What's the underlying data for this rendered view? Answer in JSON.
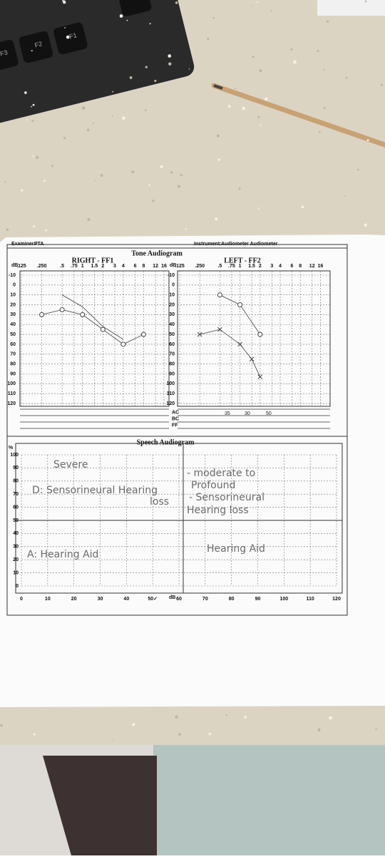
{
  "keyboard": {
    "keys": [
      "F3",
      "F2",
      "F1"
    ]
  },
  "header": {
    "examiner_label": "Examiner:",
    "examiner": "PTA",
    "instrument_label": "Instrument:",
    "instrument": "Audiometer Audiometer"
  },
  "tone_audiogram": {
    "title": "Tone Audiogram",
    "unit": "dB",
    "right": {
      "title": "RIGHT - FF1",
      "xticks": [
        {
          "value": 0.125,
          "label": ".125"
        },
        {
          "value": 0.25,
          "label": ".250"
        },
        {
          "value": 0.5,
          "label": ".5"
        },
        {
          "value": 0.75,
          "label": ".75"
        },
        1,
        1.5,
        2,
        3,
        4,
        6,
        8,
        12,
        16
      ],
      "yticks": [
        -10,
        0,
        10,
        20,
        30,
        40,
        50,
        60,
        70,
        80,
        90,
        100,
        110,
        120
      ],
      "series": [
        {
          "marker": "circle",
          "x": [
            0.25,
            0.5,
            1,
            2,
            4,
            8
          ],
          "values": [
            30,
            25,
            30,
            45,
            60,
            50
          ]
        },
        {
          "marker": "none",
          "x": [
            0.5,
            1,
            2,
            4
          ],
          "values": [
            10,
            22,
            42,
            55
          ]
        }
      ]
    },
    "left": {
      "title": "LEFT - FF2",
      "xticks": [
        {
          "value": 0.125,
          "label": ".125"
        },
        {
          "value": 0.25,
          "label": ".250"
        },
        {
          "value": 0.5,
          "label": ".5"
        },
        {
          "value": 0.75,
          "label": ".75"
        },
        1,
        1.5,
        2,
        3,
        4,
        6,
        8,
        12,
        16
      ],
      "yticks": [
        -10,
        0,
        10,
        20,
        30,
        40,
        50,
        60,
        70,
        80,
        90,
        100,
        110,
        120
      ],
      "series": [
        {
          "marker": "cross",
          "x": [
            0.25,
            0.5,
            1,
            1.5,
            2
          ],
          "values": [
            50,
            45,
            60,
            75,
            93
          ]
        },
        {
          "marker": "circle",
          "x": [
            0.5,
            1,
            2
          ],
          "values": [
            10,
            20,
            50
          ]
        }
      ],
      "row_labels": [
        "AC",
        "BC",
        "FF"
      ],
      "bottom_notes": [
        "35",
        "30",
        "50"
      ]
    }
  },
  "speech_audiogram": {
    "title": "Speech Audiogram",
    "y_unit": "%",
    "x_unit": "dB",
    "xlim": [
      0,
      120
    ],
    "ylim": [
      0,
      100
    ],
    "xticks": [
      0,
      10,
      20,
      30,
      40,
      {
        "value": 50,
        "label": "50✓"
      },
      60,
      70,
      80,
      90,
      100,
      110,
      120
    ],
    "yticks": [
      0,
      10,
      20,
      30,
      40,
      50,
      60,
      70,
      80,
      90,
      100
    ],
    "notes": [
      "Severe",
      "D: Sensorineural Hearing",
      "loss",
      "A: Hearing Aid",
      "- moderate to",
      "Profound",
      "- Sensorineural",
      "Hearing loss",
      "Hearing Aid"
    ]
  }
}
